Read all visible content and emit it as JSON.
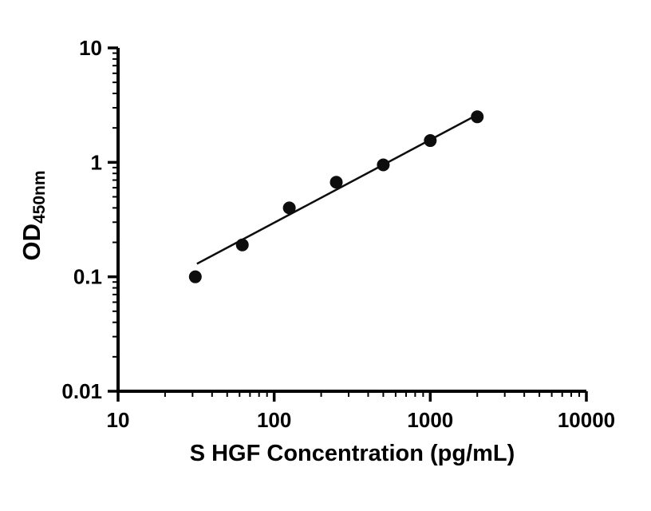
{
  "chart_data": {
    "type": "scatter",
    "title": "",
    "xlabel": "S HGF Concentration (pg/mL)",
    "ylabel_main": "OD",
    "ylabel_sub": "450nm",
    "x_scale": "log",
    "y_scale": "log",
    "xlim": [
      10,
      10000
    ],
    "ylim": [
      0.01,
      10
    ],
    "x_ticks": [
      10,
      100,
      1000,
      10000
    ],
    "x_tick_labels": [
      "10",
      "100",
      "1000",
      "10000"
    ],
    "y_ticks": [
      0.01,
      0.1,
      1,
      10
    ],
    "y_tick_labels": [
      "0.01",
      "0.1",
      "1",
      "10"
    ],
    "x": [
      31.25,
      62.5,
      125,
      250,
      500,
      1000,
      2000
    ],
    "y": [
      0.1,
      0.19,
      0.4,
      0.67,
      0.95,
      1.55,
      2.5
    ],
    "trend_line": {
      "x1": 32,
      "y1": 0.13,
      "x2": 2040,
      "y2": 2.64
    },
    "grid": false,
    "legend": false,
    "marker_color": "#0d0d0d",
    "line_color": "#0d0d0d",
    "axis_color": "#000000"
  }
}
